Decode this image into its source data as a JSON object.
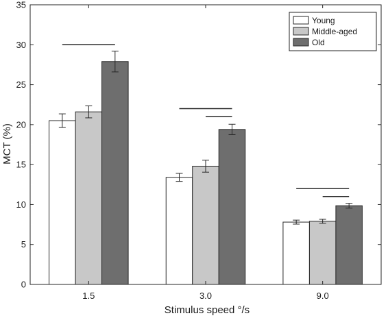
{
  "chart_data": {
    "type": "bar",
    "title": "",
    "xlabel": "Stimulus speed °/s",
    "ylabel": "MCT (%)",
    "ylim": [
      0,
      35
    ],
    "yticks": [
      0,
      5,
      10,
      15,
      20,
      25,
      30,
      35
    ],
    "categories": [
      "1.5",
      "3.0",
      "9.0"
    ],
    "series": [
      {
        "name": "Young",
        "values": [
          20.5,
          13.4,
          7.8
        ],
        "errors": [
          0.85,
          0.5,
          0.25
        ],
        "color": "#ffffff"
      },
      {
        "name": "Middle-aged",
        "values": [
          21.6,
          14.8,
          7.9
        ],
        "errors": [
          0.75,
          0.75,
          0.25
        ],
        "color": "#c8c8c8"
      },
      {
        "name": "Old",
        "values": [
          27.9,
          19.4,
          9.85
        ],
        "errors": [
          1.3,
          0.65,
          0.3
        ],
        "color": "#6e6e6e"
      }
    ],
    "significance_lines": [
      {
        "category": 0,
        "from_series": 0,
        "to_series": 2,
        "y": 30.0
      },
      {
        "category": 1,
        "from_series": 0,
        "to_series": 2,
        "y": 22.0
      },
      {
        "category": 1,
        "from_series": 1,
        "to_series": 2,
        "y": 21.0
      },
      {
        "category": 2,
        "from_series": 0,
        "to_series": 2,
        "y": 12.0
      },
      {
        "category": 2,
        "from_series": 1,
        "to_series": 2,
        "y": 11.0
      }
    ],
    "legend_position": "top-right",
    "grid": false
  }
}
